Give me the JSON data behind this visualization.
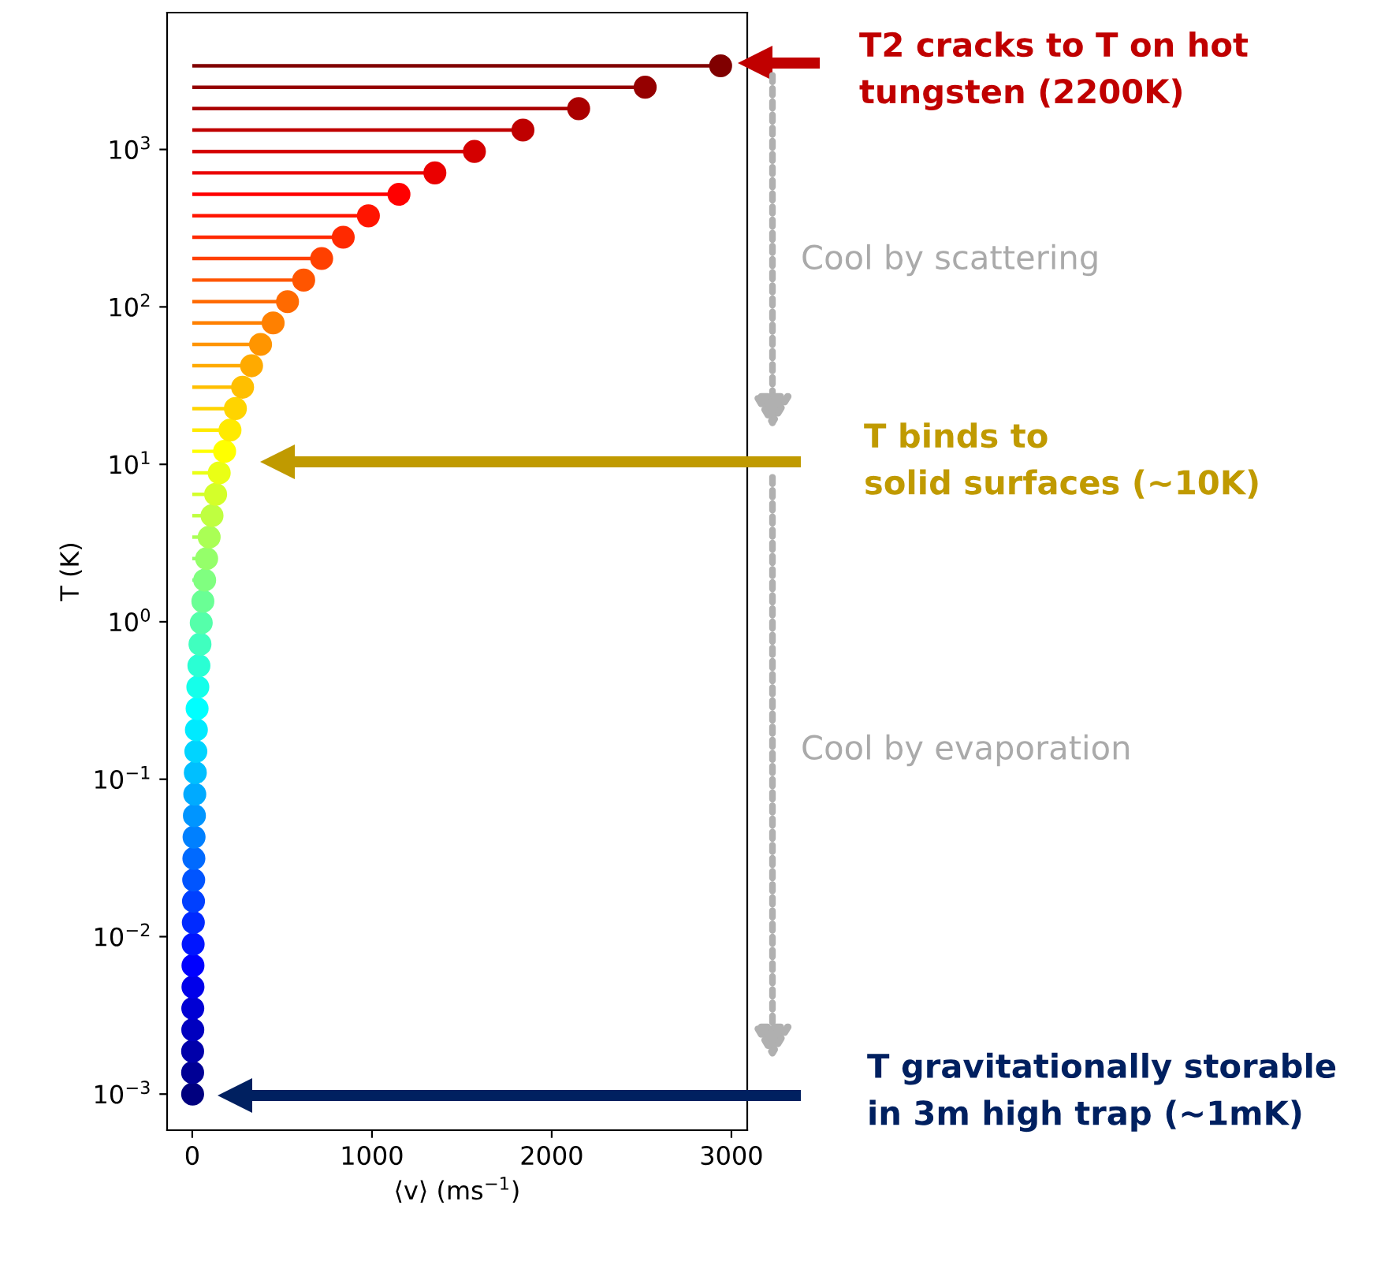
{
  "chart_data": {
    "type": "lollipop",
    "orientation": "horizontal",
    "log": "y",
    "x": [
      0.001,
      0.00137,
      0.00187,
      0.00256,
      0.0035,
      0.00479,
      0.00655,
      0.00896,
      0.0123,
      0.0168,
      0.0229,
      0.0314,
      0.0429,
      0.0587,
      0.0803,
      0.11,
      0.15,
      0.206,
      0.281,
      0.385,
      0.526,
      0.72,
      0.985,
      1.35,
      1.84,
      2.52,
      3.45,
      4.72,
      6.45,
      8.83,
      12.1,
      16.5,
      22.6,
      30.9,
      42.3,
      57.8,
      79.1,
      108,
      148,
      203,
      277,
      379,
      519,
      710,
      971,
      1328,
      1817,
      2485,
      3400
    ],
    "values": [
      2,
      2,
      2,
      3,
      3,
      4,
      4,
      5,
      6,
      7,
      8,
      9,
      10,
      12,
      14,
      17,
      20,
      23,
      27,
      31,
      37,
      43,
      50,
      59,
      69,
      80,
      94,
      110,
      130,
      150,
      180,
      210,
      240,
      280,
      330,
      380,
      450,
      530,
      620,
      720,
      840,
      980,
      1150,
      1350,
      1570,
      1840,
      2150,
      2520,
      2940
    ],
    "colors": [
      "#00007f",
      "#000095",
      "#0000aa",
      "#0000bf",
      "#0000d4",
      "#0000ea",
      "#0000ff",
      "#0015ff",
      "#002aff",
      "#0040ff",
      "#0055ff",
      "#006aff",
      "#0080ff",
      "#0095ff",
      "#00aaff",
      "#00bfff",
      "#00d4ff",
      "#00eaff",
      "#00ffff",
      "#15ffea",
      "#2affd4",
      "#40ffbf",
      "#55ffaa",
      "#6aff95",
      "#80ff80",
      "#95ff6a",
      "#aaff55",
      "#bfff40",
      "#d4ff2a",
      "#eaff15",
      "#ffff00",
      "#ffea00",
      "#ffd400",
      "#ffbf00",
      "#ffaa00",
      "#ff9500",
      "#ff8000",
      "#ff6a00",
      "#ff5500",
      "#ff4000",
      "#ff2a00",
      "#ff1500",
      "#ff0000",
      "#ea0000",
      "#d40000",
      "#bf0000",
      "#aa0000",
      "#950000",
      "#800000"
    ],
    "marker": "circle",
    "xlim": [
      -140,
      3088
    ],
    "xticks": [
      0,
      1000,
      2000,
      3000
    ],
    "ylim": [
      0.00059,
      7400
    ],
    "yticks": [
      {
        "value": 0.001,
        "label": "10$^{−3}$"
      },
      {
        "value": 0.01,
        "label": "10$^{−2}$"
      },
      {
        "value": 0.1,
        "label": "10$^{−1}$"
      },
      {
        "value": 1,
        "label": "10$^{0}$"
      },
      {
        "value": 10,
        "label": "10$^{1}$"
      },
      {
        "value": 100,
        "label": "10$^{2}$"
      },
      {
        "value": 1000,
        "label": "10$^{3}$"
      }
    ],
    "xlabel": "⟨v⟩ (ms$^{−1}$)",
    "ylabel": "T (K)",
    "annotations": [
      "T2 cracks to T on hot\ntungsten (2200K)",
      "Cool by scattering",
      "T binds to\nsolid surfaces (~10K)",
      "Cool by evaporation",
      "T gravitationally storable\nin 3m high trap (~1mK)"
    ]
  }
}
